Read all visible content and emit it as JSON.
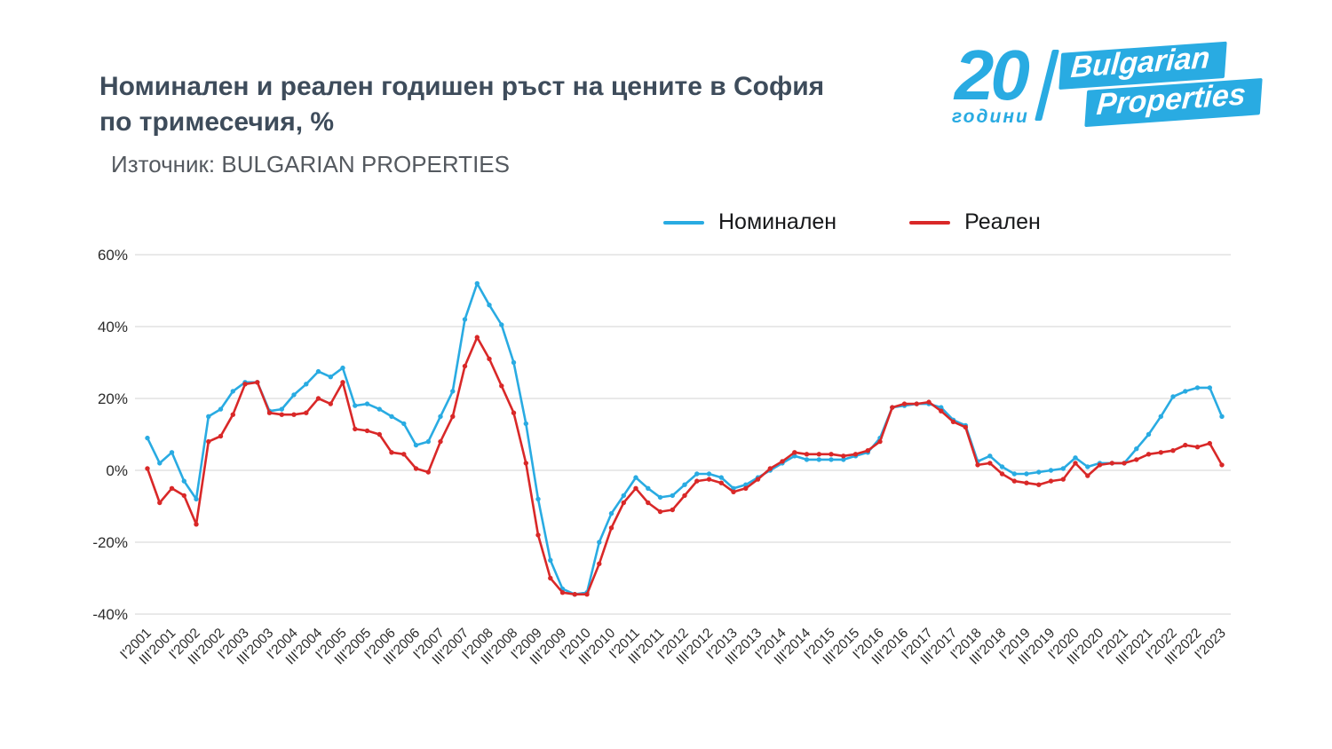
{
  "header": {
    "title_line1": "Номинален и реален годишен ръст на цените в София",
    "title_line2": "по тримесечия, %",
    "source": "Източник: BULGARIAN PROPERTIES"
  },
  "logo": {
    "number": "20",
    "years": "години",
    "brand_line1": "Bulgarian",
    "brand_line2": "Properties",
    "blue": "#29abe2"
  },
  "legend": [
    {
      "label": "Номинален",
      "color": "#29abe2"
    },
    {
      "label": "Реален",
      "color": "#d92828"
    }
  ],
  "chart_data": {
    "type": "line",
    "title": "Номинален и реален годишен ръст на цените в София по тримесечия, %",
    "ylim": [
      -40,
      60
    ],
    "yticks": [
      60,
      40,
      20,
      0,
      -20,
      -40
    ],
    "ytick_labels": [
      "60%",
      "40%",
      "20%",
      "0%",
      "-20%",
      "-40%"
    ],
    "grid": "horizontal",
    "legend_position": "top",
    "points_per_label": 2,
    "x_labels": [
      "I'2001",
      "III'2001",
      "I'2002",
      "III'2002",
      "I'2003",
      "III'2003",
      "I'2004",
      "III'2004",
      "I'2005",
      "III'2005",
      "I'2006",
      "III'2006",
      "I'2007",
      "III'2007",
      "I'2008",
      "III'2008",
      "I'2009",
      "III'2009",
      "I'2010",
      "III'2010",
      "I'2011",
      "III'2011",
      "I'2012",
      "III'2012",
      "I'2013",
      "III'2013",
      "I'2014",
      "III'2014",
      "I'2015",
      "III'2015",
      "I'2016",
      "III'2016",
      "I'2017",
      "III'2017",
      "I'2018",
      "III'2018",
      "I'2019",
      "III'2019",
      "I'2020",
      "III'2020",
      "I'2021",
      "III'2021",
      "I'2022",
      "III'2022",
      "I'2023"
    ],
    "series": [
      {
        "name": "Номинален",
        "color": "#29abe2",
        "values": [
          9,
          2,
          5,
          -3,
          -8,
          15,
          17,
          22,
          24.5,
          24.5,
          16.5,
          17,
          21,
          24,
          27.5,
          26,
          28.5,
          18,
          18.5,
          17,
          15,
          13,
          7,
          8,
          15,
          22,
          42,
          52,
          46,
          40.5,
          30,
          13,
          -8,
          -25,
          -33,
          -34.5,
          -34,
          -20,
          -12,
          -7,
          -2,
          -5,
          -7.5,
          -7,
          -4,
          -1,
          -1,
          -2,
          -5,
          -4,
          -2,
          0,
          2,
          4,
          3,
          3,
          3,
          3,
          4,
          5,
          9,
          17.5,
          18,
          18.5,
          18.5,
          17.5,
          14,
          12.5,
          2.5,
          4,
          1,
          -1,
          -1,
          -0.5,
          0,
          0.5,
          3.5,
          1,
          2,
          2,
          2,
          6,
          10,
          15,
          20.5,
          22,
          23,
          23,
          15
        ]
      },
      {
        "name": "Реален",
        "color": "#d92828",
        "values": [
          0.5,
          -9,
          -5,
          -7,
          -15,
          8,
          9.5,
          15.5,
          24,
          24.5,
          16,
          15.5,
          15.5,
          16,
          20,
          18.5,
          24.5,
          11.5,
          11,
          10,
          5,
          4.5,
          0.5,
          -0.5,
          8,
          15,
          29,
          37,
          31,
          23.5,
          16,
          2,
          -18,
          -30,
          -34,
          -34.5,
          -34.5,
          -26,
          -16,
          -9,
          -5,
          -9,
          -11.5,
          -11,
          -7,
          -3,
          -2.5,
          -3.5,
          -6,
          -5,
          -2.5,
          0.5,
          2.5,
          5,
          4.5,
          4.5,
          4.5,
          4,
          4.5,
          5.5,
          8,
          17.5,
          18.5,
          18.5,
          19,
          16.5,
          13.5,
          12,
          1.5,
          2,
          -1,
          -3,
          -3.5,
          -4,
          -3,
          -2.5,
          2,
          -1.5,
          1.5,
          2,
          2,
          3,
          4.5,
          5,
          5.5,
          7,
          6.5,
          7.5,
          1.5
        ]
      }
    ]
  }
}
